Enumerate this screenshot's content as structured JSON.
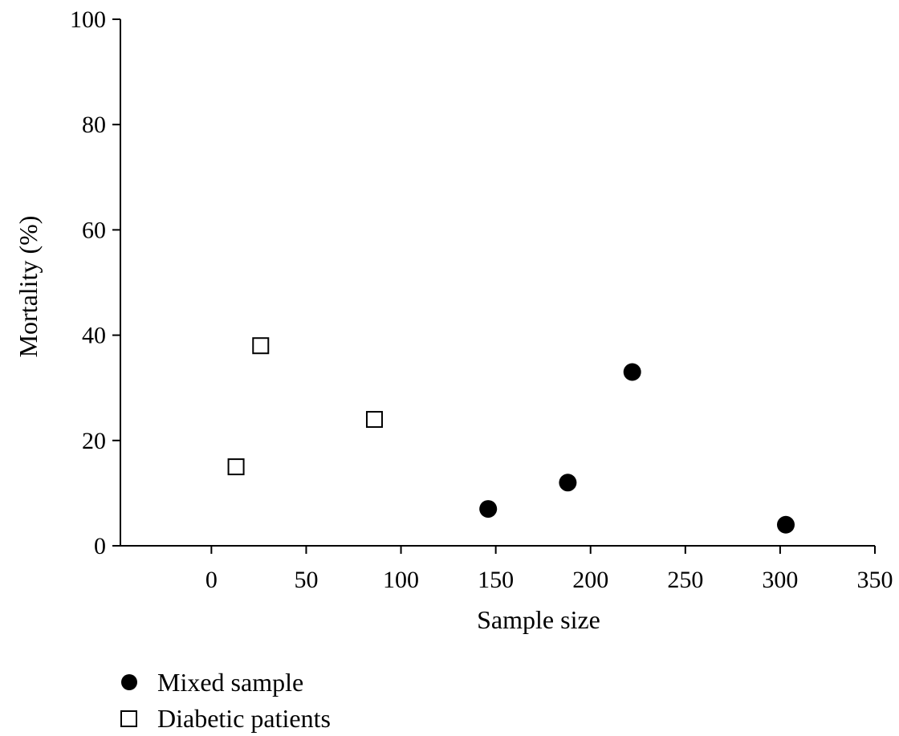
{
  "chart_data": {
    "type": "scatter",
    "title": "",
    "xlabel": "Sample size",
    "ylabel": "Mortality (%)",
    "xlim": [
      -48,
      350
    ],
    "ylim": [
      0,
      100
    ],
    "x_ticks": [
      0,
      50,
      100,
      150,
      200,
      250,
      300,
      350
    ],
    "y_ticks": [
      0,
      20,
      40,
      60,
      80,
      100
    ],
    "x_tick_labels": [
      "0",
      "50",
      "100",
      "150",
      "200",
      "250",
      "300",
      "350"
    ],
    "y_tick_labels": [
      "0",
      "20",
      "40",
      "60",
      "80",
      "100"
    ],
    "grid": false,
    "legend_position": "bottom-left",
    "series": [
      {
        "name": "Mixed sample",
        "marker": "filled-circle",
        "color": "#000000",
        "points": [
          {
            "x": 146,
            "y": 7
          },
          {
            "x": 188,
            "y": 12
          },
          {
            "x": 222,
            "y": 33
          },
          {
            "x": 303,
            "y": 4
          }
        ]
      },
      {
        "name": "Diabetic patients",
        "marker": "open-square",
        "color": "#000000",
        "points": [
          {
            "x": 13,
            "y": 15
          },
          {
            "x": 26,
            "y": 38
          },
          {
            "x": 86,
            "y": 24
          }
        ]
      }
    ]
  }
}
